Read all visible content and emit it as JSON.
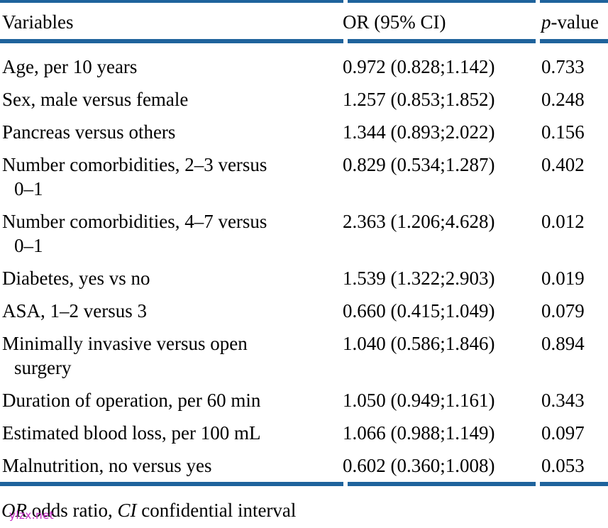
{
  "table": {
    "header": {
      "variables": "Variables",
      "or_ci": "OR (95% CI)",
      "p_italic": "p",
      "p_rest": "-value"
    },
    "rows": [
      {
        "variable_lines": [
          "Age, per 10 years"
        ],
        "or_ci": "0.972 (0.828;1.142)",
        "p_value": "0.733"
      },
      {
        "variable_lines": [
          "Sex, male versus female"
        ],
        "or_ci": "1.257 (0.853;1.852)",
        "p_value": "0.248"
      },
      {
        "variable_lines": [
          "Pancreas versus others"
        ],
        "or_ci": "1.344 (0.893;2.022)",
        "p_value": "0.156"
      },
      {
        "variable_lines": [
          "Number comorbidities, 2–3 versus",
          "0–1"
        ],
        "or_ci": "0.829 (0.534;1.287)",
        "p_value": "0.402"
      },
      {
        "variable_lines": [
          "Number comorbidities, 4–7 versus",
          "0–1"
        ],
        "or_ci": "2.363 (1.206;4.628)",
        "p_value": "0.012"
      },
      {
        "variable_lines": [
          "Diabetes, yes vs no"
        ],
        "or_ci": "1.539 (1.322;2.903)",
        "p_value": "0.019"
      },
      {
        "variable_lines": [
          "ASA, 1–2 versus 3"
        ],
        "or_ci": "0.660 (0.415;1.049)",
        "p_value": "0.079"
      },
      {
        "variable_lines": [
          "Minimally invasive versus open",
          "surgery"
        ],
        "or_ci": "1.040 (0.586;1.846)",
        "p_value": "0.894"
      },
      {
        "variable_lines": [
          "Duration of operation, per 60 min"
        ],
        "or_ci": "1.050 (0.949;1.161)",
        "p_value": "0.343"
      },
      {
        "variable_lines": [
          "Estimated blood loss, per 100 mL"
        ],
        "or_ci": "1.066 (0.988;1.149)",
        "p_value": "0.097"
      },
      {
        "variable_lines": [
          "Malnutrition, no versus yes"
        ],
        "or_ci": "0.602 (0.360;1.008)",
        "p_value": "0.053"
      }
    ]
  },
  "footnote": {
    "or_abbr": "OR",
    "or_text": " odds ratio, ",
    "ci_abbr": "CI",
    "ci_text": " confidential interval"
  },
  "watermark": "ylzx.net",
  "colors": {
    "rule_blue": "#1f639c",
    "watermark_magenta": "#c42ac4",
    "text_black": "#000000"
  }
}
